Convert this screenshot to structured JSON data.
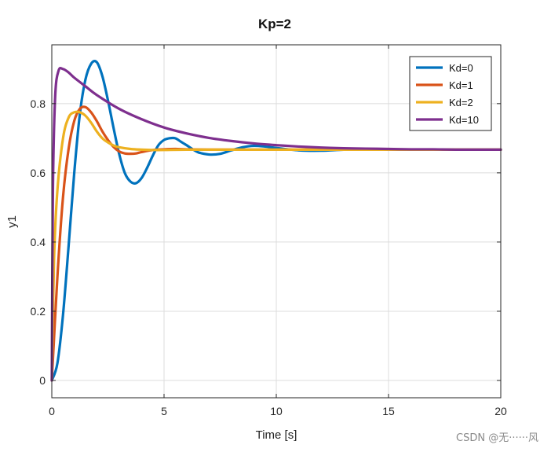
{
  "chart_data": {
    "type": "line",
    "title": "Kp=2",
    "xlabel": "Time [s]",
    "ylabel": "y1",
    "xlim": [
      0,
      20
    ],
    "ylim": [
      -0.05,
      0.97
    ],
    "xticks": [
      0,
      5,
      10,
      15,
      20
    ],
    "yticks": [
      0,
      0.2,
      0.4,
      0.6,
      0.8
    ],
    "xtick_labels": [
      "0",
      "5",
      "10",
      "15",
      "20"
    ],
    "ytick_labels": [
      "0",
      "0.2",
      "0.4",
      "0.6",
      "0.8"
    ],
    "grid": true,
    "legend": "top-right",
    "series": [
      {
        "name": "Kd=0",
        "color": "#0072BD",
        "x": [
          0,
          0.25,
          0.5,
          0.75,
          1.0,
          1.25,
          1.5,
          1.75,
          2.0,
          2.25,
          2.5,
          2.75,
          3.0,
          3.25,
          3.5,
          3.75,
          4.0,
          4.25,
          4.5,
          4.75,
          5.0,
          5.25,
          5.5,
          5.75,
          6.0,
          6.5,
          7.0,
          7.5,
          8.0,
          8.5,
          9.0,
          9.5,
          10.0,
          11.0,
          12.0,
          13.0,
          14.0,
          15.0,
          17.0,
          20.0
        ],
        "y": [
          0.0,
          0.05,
          0.19,
          0.39,
          0.6,
          0.77,
          0.87,
          0.915,
          0.92,
          0.88,
          0.81,
          0.73,
          0.655,
          0.6,
          0.575,
          0.57,
          0.585,
          0.615,
          0.65,
          0.68,
          0.695,
          0.7,
          0.7,
          0.69,
          0.68,
          0.66,
          0.653,
          0.655,
          0.665,
          0.674,
          0.678,
          0.676,
          0.672,
          0.665,
          0.664,
          0.667,
          0.668,
          0.667,
          0.667,
          0.667
        ]
      },
      {
        "name": "Kd=1",
        "color": "#D95319",
        "x": [
          0,
          0.25,
          0.5,
          0.75,
          1.0,
          1.25,
          1.5,
          1.75,
          2.0,
          2.25,
          2.5,
          2.75,
          3.0,
          3.25,
          3.5,
          3.75,
          4.0,
          4.5,
          5.0,
          5.5,
          6.0,
          7.0,
          8.0,
          10.0,
          13.0,
          20.0
        ],
        "y": [
          0.0,
          0.3,
          0.53,
          0.67,
          0.75,
          0.785,
          0.79,
          0.775,
          0.75,
          0.72,
          0.695,
          0.675,
          0.662,
          0.656,
          0.655,
          0.656,
          0.66,
          0.666,
          0.668,
          0.669,
          0.668,
          0.667,
          0.667,
          0.667,
          0.667,
          0.667
        ]
      },
      {
        "name": "Kd=2",
        "color": "#EDB120",
        "x": [
          0,
          0.1,
          0.25,
          0.5,
          0.75,
          1.0,
          1.25,
          1.5,
          1.75,
          2.0,
          2.25,
          2.5,
          2.75,
          3.0,
          3.5,
          4.0,
          4.5,
          5.0,
          6.0,
          8.0,
          10.0,
          20.0
        ],
        "y": [
          0.0,
          0.35,
          0.55,
          0.7,
          0.76,
          0.775,
          0.775,
          0.765,
          0.745,
          0.72,
          0.7,
          0.688,
          0.679,
          0.674,
          0.669,
          0.667,
          0.666,
          0.666,
          0.667,
          0.667,
          0.667,
          0.667
        ]
      },
      {
        "name": "Kd=10",
        "color": "#7E2F8E",
        "x": [
          0,
          0.05,
          0.15,
          0.3,
          0.5,
          0.75,
          1.0,
          1.5,
          2.0,
          3.0,
          4.0,
          5.0,
          6.0,
          7.0,
          8.0,
          9.0,
          10.0,
          11.0,
          12.0,
          13.0,
          14.0,
          15.0,
          16.0,
          17.0,
          18.0,
          20.0
        ],
        "y": [
          0.0,
          0.55,
          0.82,
          0.895,
          0.9,
          0.89,
          0.875,
          0.85,
          0.825,
          0.785,
          0.755,
          0.731,
          0.714,
          0.701,
          0.692,
          0.685,
          0.68,
          0.676,
          0.673,
          0.671,
          0.67,
          0.669,
          0.668,
          0.668,
          0.667,
          0.667
        ]
      }
    ]
  },
  "watermark": "CSDN @无······风"
}
